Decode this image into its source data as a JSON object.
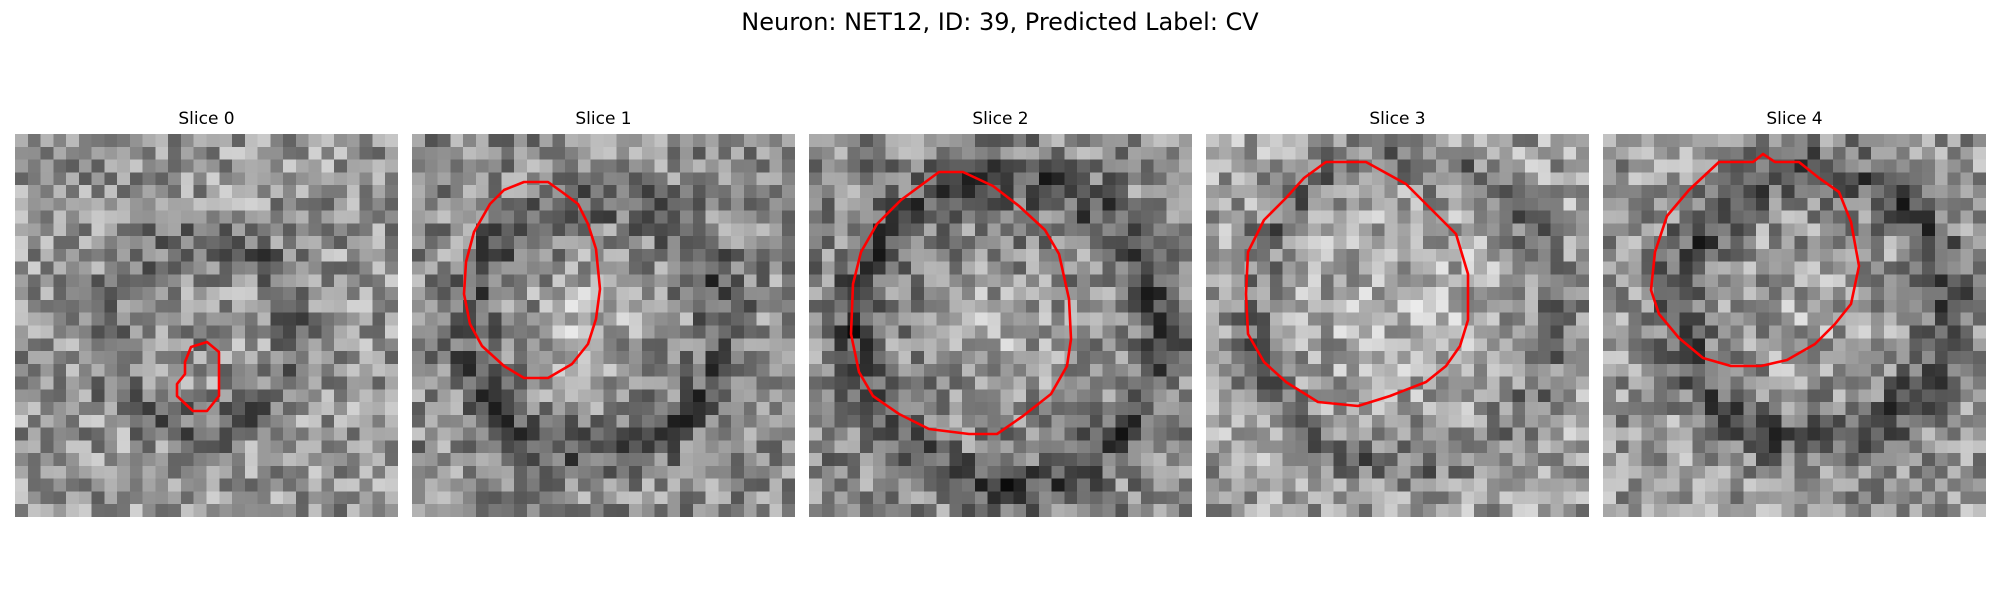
{
  "figure": {
    "title": "Neuron: NET12, ID: 39, Predicted Label: CV",
    "contour_color": "#ff0000"
  },
  "slices": [
    {
      "label": "Slice 0"
    },
    {
      "label": "Slice 1"
    },
    {
      "label": "Slice 2"
    },
    {
      "label": "Slice 3"
    },
    {
      "label": "Slice 4"
    }
  ]
}
